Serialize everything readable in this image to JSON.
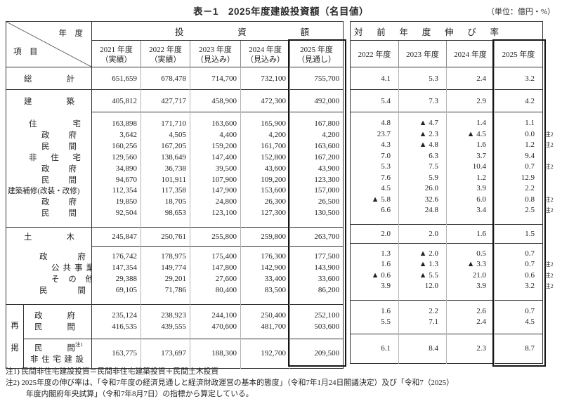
{
  "title": "表－1　2025年度建設投資額（名目値）",
  "unit_note": "（単位：億円・%）",
  "corner": {
    "top_label": "年　度",
    "bottom_label": "項　目"
  },
  "left_table": {
    "group_header": "投資額",
    "columns": [
      {
        "year": "2021 年度",
        "status": "（実績）"
      },
      {
        "year": "2022 年度",
        "status": "（実績）"
      },
      {
        "year": "2023 年度",
        "status": "（見込み）"
      },
      {
        "year": "2024 年度",
        "status": "（見込み）"
      },
      {
        "year": "2025 年度",
        "status": "（見通し）"
      }
    ]
  },
  "right_table": {
    "group_header": "対前年度伸び率",
    "columns": [
      "2022 年度",
      "2023 年度",
      "2024 年度",
      "2025 年度"
    ]
  },
  "regroup_label": [
    "再",
    "掲"
  ],
  "note_mark": "注2",
  "rows": [
    {
      "label": "総計",
      "indent": "g",
      "amounts": [
        "651,659",
        "678,478",
        "714,700",
        "732,100",
        "755,700"
      ],
      "rates": [
        "4.1",
        "5.3",
        "2.4",
        "3.2"
      ],
      "note2": false
    },
    {
      "label": "建築",
      "indent": "g",
      "amounts": [
        "405,812",
        "427,717",
        "458,900",
        "472,300",
        "492,000"
      ],
      "rates": [
        "5.4",
        "7.3",
        "2.9",
        "4.2"
      ],
      "note2": false
    },
    {
      "label": "住宅",
      "indent": "l1",
      "amounts": [
        "163,898",
        "171,710",
        "163,600",
        "165,900",
        "167,800"
      ],
      "rates": [
        "4.8",
        "▲ 4.7",
        "1.4",
        "1.1"
      ],
      "note2": false
    },
    {
      "label": "政府",
      "indent": "l2",
      "amounts": [
        "3,642",
        "4,505",
        "4,400",
        "4,200",
        "4,200"
      ],
      "rates": [
        "23.7",
        "▲ 2.3",
        "▲ 4.5",
        "0.0"
      ],
      "note2": true
    },
    {
      "label": "民間",
      "indent": "l2",
      "amounts": [
        "160,256",
        "167,205",
        "159,200",
        "161,700",
        "163,600"
      ],
      "rates": [
        "4.3",
        "▲ 4.8",
        "1.6",
        "1.2"
      ],
      "note2": true
    },
    {
      "label": "非住宅",
      "indent": "l1",
      "amounts": [
        "129,560",
        "138,649",
        "147,400",
        "152,800",
        "167,200"
      ],
      "rates": [
        "7.0",
        "6.3",
        "3.7",
        "9.4"
      ],
      "note2": false
    },
    {
      "label": "政府",
      "indent": "l2",
      "amounts": [
        "34,890",
        "36,738",
        "39,500",
        "43,600",
        "43,900"
      ],
      "rates": [
        "5.3",
        "7.5",
        "10.4",
        "0.7"
      ],
      "note2": true
    },
    {
      "label": "民間",
      "indent": "l2",
      "amounts": [
        "94,670",
        "101,911",
        "107,900",
        "109,200",
        "123,300"
      ],
      "rates": [
        "7.6",
        "5.9",
        "1.2",
        "12.9"
      ],
      "note2": false
    },
    {
      "label": "建築補修(改装・改修)",
      "indent": "full",
      "amounts": [
        "112,354",
        "117,358",
        "147,900",
        "153,600",
        "157,000"
      ],
      "rates": [
        "4.5",
        "26.0",
        "3.9",
        "2.2"
      ],
      "note2": false
    },
    {
      "label": "政府",
      "indent": "l2",
      "amounts": [
        "19,850",
        "18,705",
        "24,800",
        "26,300",
        "26,500"
      ],
      "rates": [
        "▲ 5.8",
        "32.6",
        "6.0",
        "0.8"
      ],
      "note2": true
    },
    {
      "label": "民間",
      "indent": "l2",
      "amounts": [
        "92,504",
        "98,653",
        "123,100",
        "127,300",
        "130,500"
      ],
      "rates": [
        "6.6",
        "24.8",
        "3.4",
        "2.5"
      ],
      "note2": true
    },
    {
      "label": "土木",
      "indent": "g",
      "amounts": [
        "245,847",
        "250,761",
        "255,800",
        "259,800",
        "263,700"
      ],
      "rates": [
        "2.0",
        "2.0",
        "1.6",
        "1.5"
      ],
      "note2": false
    },
    {
      "label": "政府",
      "indent": "l2b",
      "amounts": [
        "176,742",
        "178,975",
        "175,400",
        "176,300",
        "177,500"
      ],
      "rates": [
        "1.3",
        "▲ 2.0",
        "0.5",
        "0.7"
      ],
      "note2": false
    },
    {
      "label": "公共事業",
      "indent": "pub",
      "amounts": [
        "147,354",
        "149,774",
        "147,800",
        "142,900",
        "143,900"
      ],
      "rates": [
        "1.6",
        "▲ 1.3",
        "▲ 3.3",
        "0.7"
      ],
      "note2": true
    },
    {
      "label": "その他",
      "indent": "oth",
      "amounts": [
        "29,388",
        "29,201",
        "27,600",
        "33,400",
        "33,600"
      ],
      "rates": [
        "▲ 0.6",
        "▲ 5.5",
        "21.0",
        "0.6"
      ],
      "note2": true
    },
    {
      "label": "民間",
      "indent": "l2b",
      "amounts": [
        "69,105",
        "71,786",
        "80,400",
        "83,500",
        "86,200"
      ],
      "rates": [
        "3.9",
        "12.0",
        "3.9",
        "3.2"
      ],
      "note2": true
    },
    {
      "label": "政府",
      "indent": "rg",
      "amounts": [
        "235,124",
        "238,923",
        "244,100",
        "250,400",
        "252,100"
      ],
      "rates": [
        "1.6",
        "2.2",
        "2.6",
        "0.7"
      ],
      "note2": false
    },
    {
      "label": "民間",
      "indent": "rg",
      "amounts": [
        "416,535",
        "439,555",
        "470,600",
        "481,700",
        "503,600"
      ],
      "rates": [
        "5.5",
        "7.1",
        "2.4",
        "4.5"
      ],
      "note2": false
    },
    {
      "label": "民間",
      "sup": "注1",
      "label2": "非住宅建設",
      "indent": "rg",
      "amounts": [
        "163,775",
        "173,697",
        "188,300",
        "192,700",
        "209,500"
      ],
      "rates": [
        "6.1",
        "8.4",
        "2.3",
        "8.7"
      ],
      "note2": false
    }
  ],
  "footnotes": [
    "注1) 民間非住宅建設投資＝民間非住宅建築投資＋民間土木投資",
    "注2) 2025年度の伸び率は、「令和7年度の経済見通しと経済財政運営の基本的態度」（令和7年1月24日閣議決定）及び「令和7（2025）",
    "年度内閣府年央試算」（令和7年8月7日）の指標から算定している。"
  ]
}
